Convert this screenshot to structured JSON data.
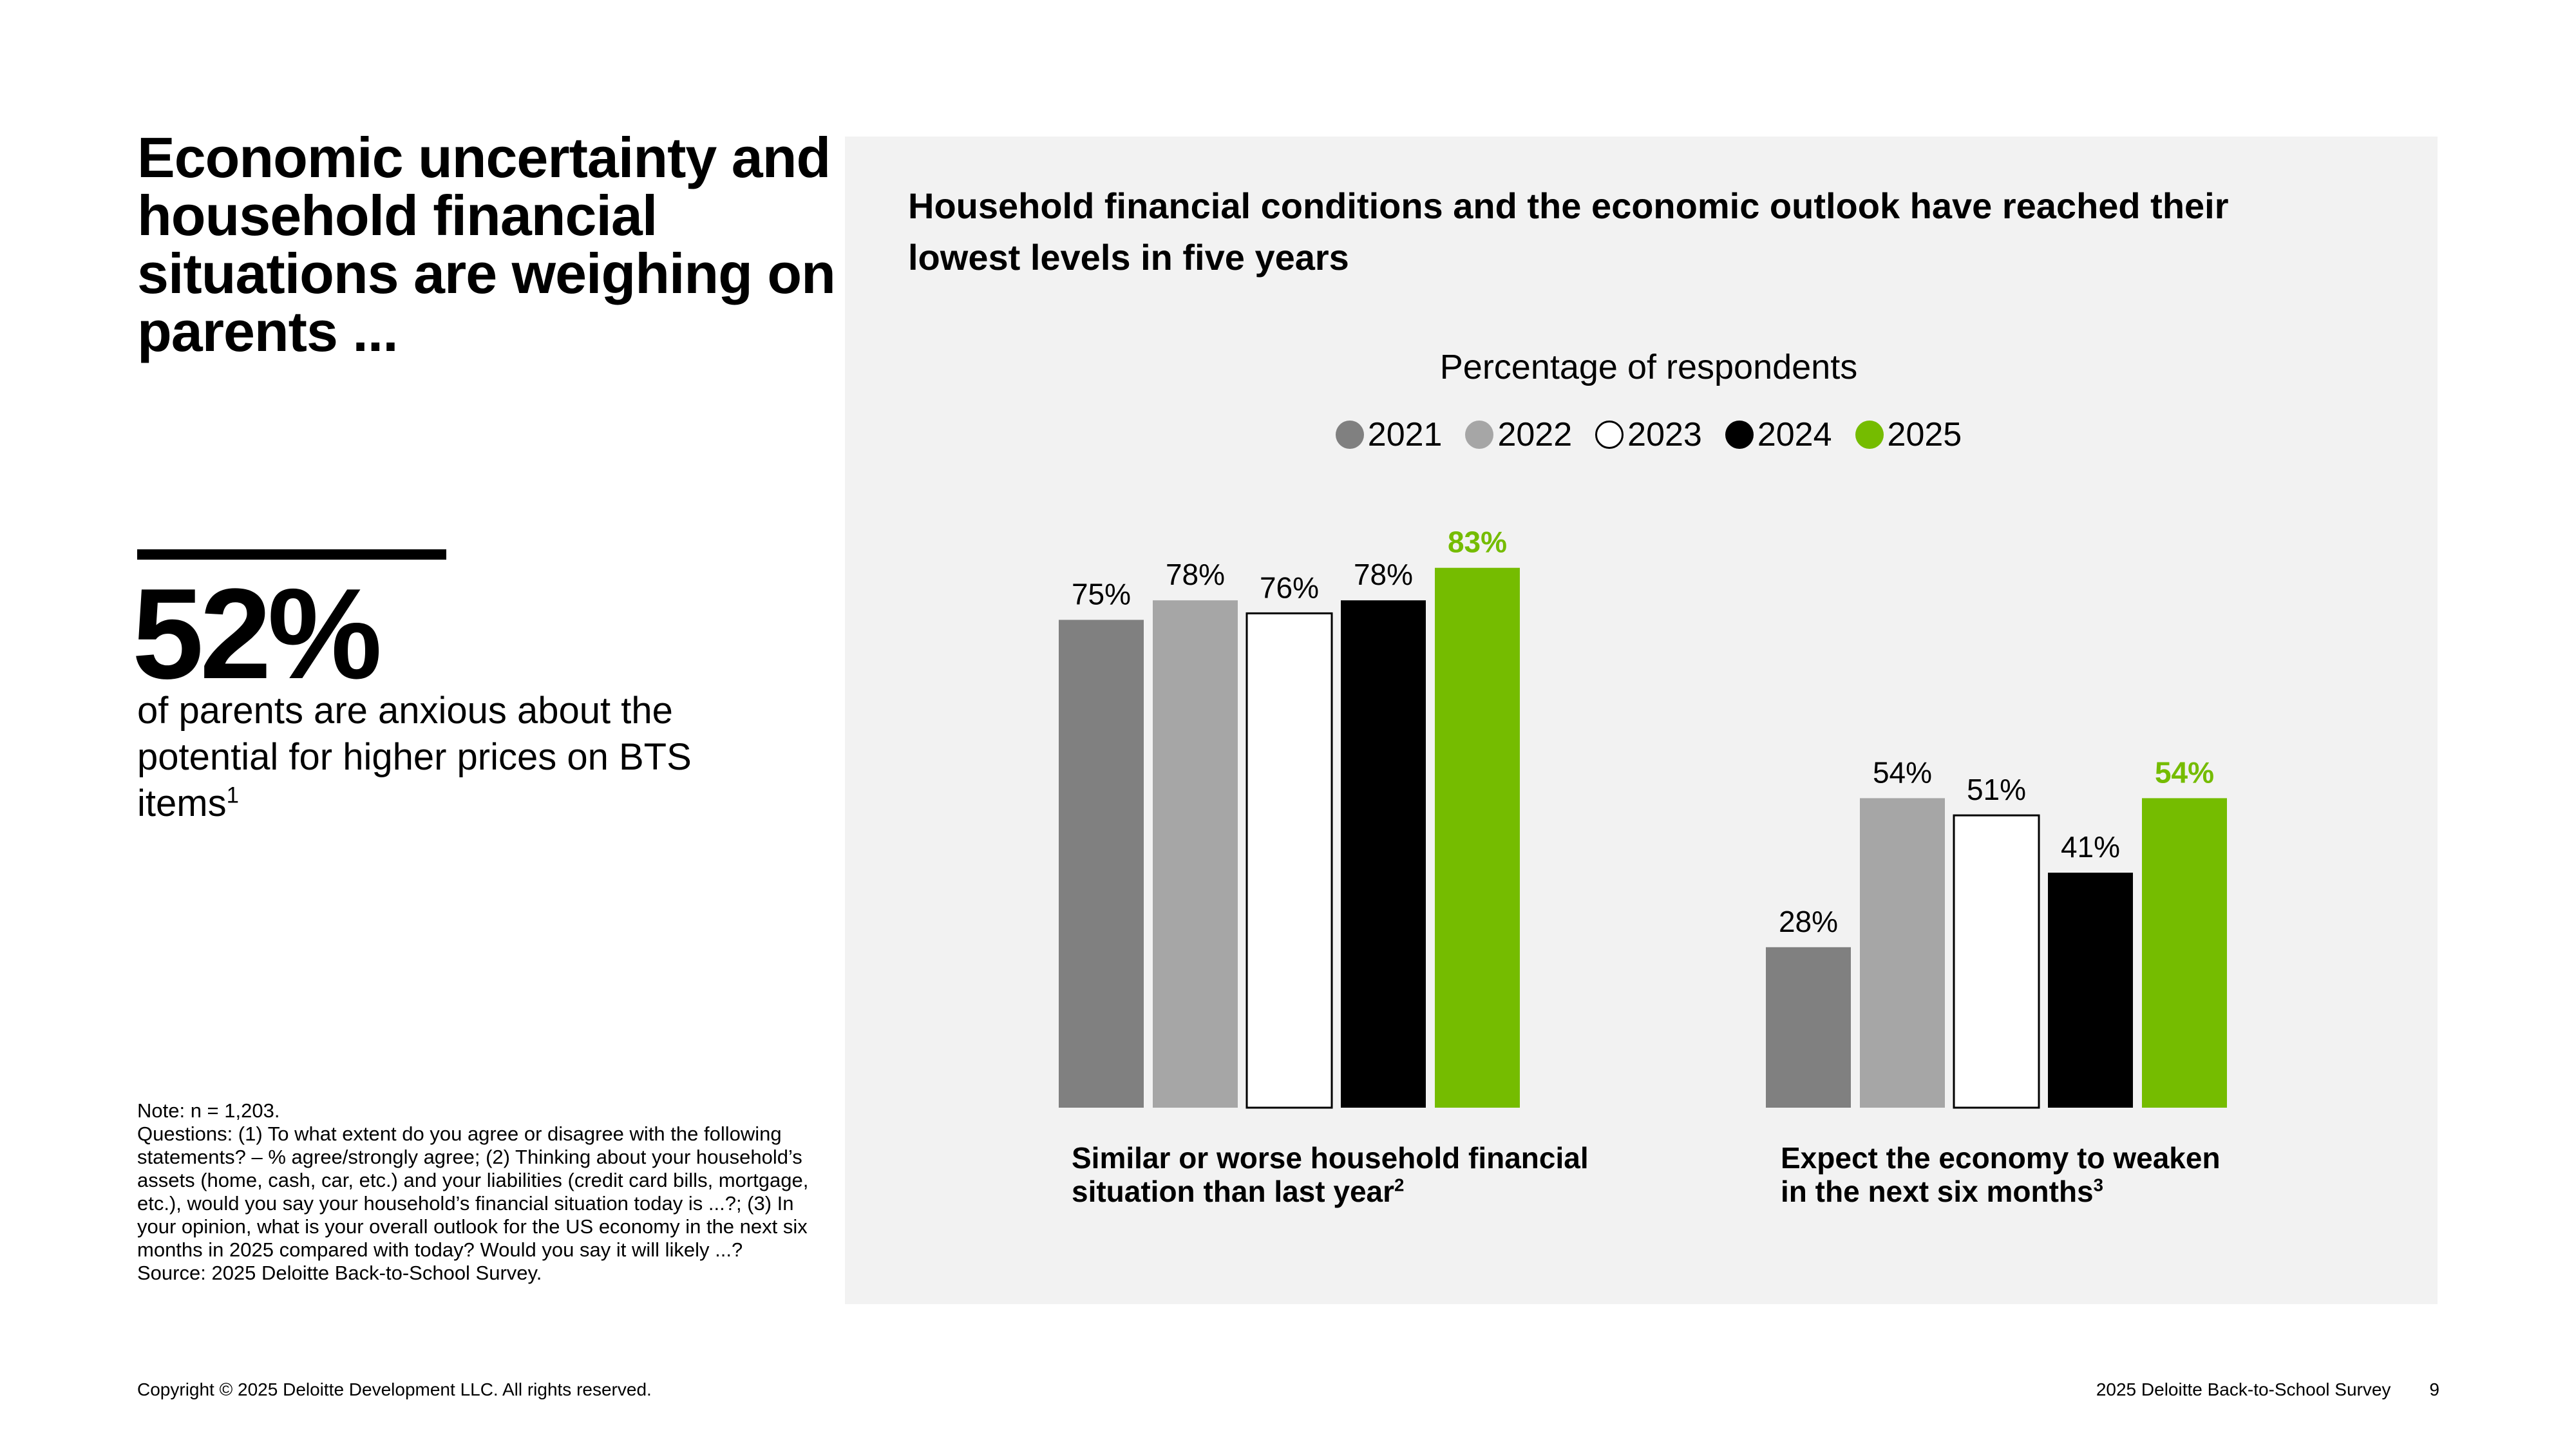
{
  "headline": "Economic uncertainty and household financial situations are weighing on parents ...",
  "stat": {
    "value": "52%",
    "description": "of parents are anxious about the potential for higher prices on BTS items",
    "footnote": "1"
  },
  "notes": {
    "note": "Note: n = 1,203.",
    "questions": "Questions: (1) To what extent do you agree or disagree with the following statements? – % agree/strongly agree; (2) Thinking about your household’s assets (home, cash, car, etc.) and your liabilities (credit card bills, mortgage, etc.), would you say your household’s financial situation today is ...?; (3) In your opinion, what is your overall outlook for the US economy in the next six months in 2025 compared with today? Would you say it will likely ...?",
    "source": "Source: 2025 Deloitte Back-to-School Survey."
  },
  "footer": {
    "copyright": "Copyright © 2025 Deloitte Development LLC. All rights reserved.",
    "report": "2025 Deloitte Back-to-School Survey",
    "page": "9"
  },
  "colors": {
    "2021": "#808080",
    "2022": "#a6a6a6",
    "2023": "#ffffff",
    "2024": "#000000",
    "2025": "#75bc00",
    "panel": "#f2f2f2"
  },
  "chart_data": {
    "type": "bar",
    "title": "Household financial conditions and the economic outlook have reached their lowest levels in five years",
    "subtitle": "Percentage of respondents",
    "legend": [
      "2021",
      "2022",
      "2023",
      "2024",
      "2025"
    ],
    "legend_position": "top-center",
    "grid": false,
    "ylim": [
      0,
      100
    ],
    "categories": [
      {
        "label": "Similar or worse household financial situation than last year",
        "footnote": "2"
      },
      {
        "label": "Expect the economy to weaken in the next six months",
        "footnote": "3"
      }
    ],
    "series": [
      {
        "name": "2021",
        "values": [
          75,
          28
        ]
      },
      {
        "name": "2022",
        "values": [
          78,
          54
        ]
      },
      {
        "name": "2023",
        "values": [
          76,
          51
        ]
      },
      {
        "name": "2024",
        "values": [
          78,
          41
        ]
      },
      {
        "name": "2025",
        "values": [
          83,
          54
        ]
      }
    ],
    "highlight_series": "2025"
  }
}
